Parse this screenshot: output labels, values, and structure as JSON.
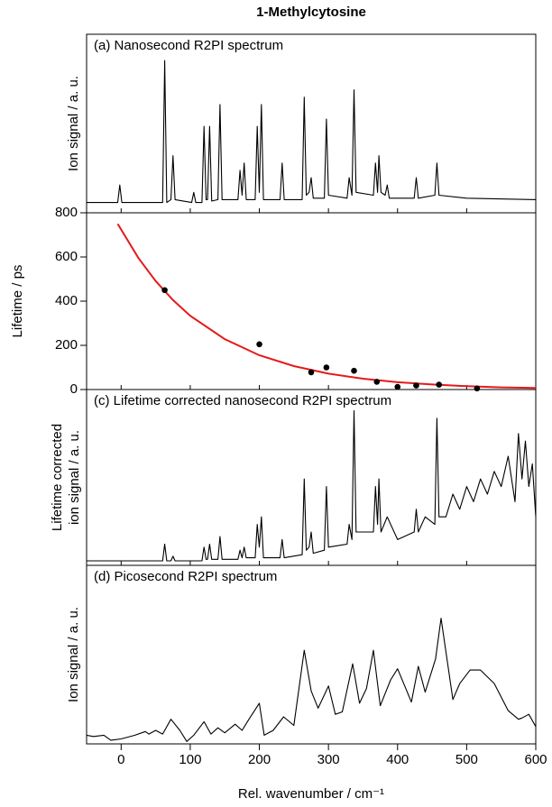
{
  "chart_data": [
    {
      "type": "line",
      "title": "1-Methylcytosine",
      "label": "(a) Nanosecond R2PI spectrum",
      "ylabel": "Ion signal / a. u.",
      "color": "#000000",
      "xlim": [
        -50,
        600
      ],
      "ylim": [
        -0.04,
        1.18
      ],
      "x": [
        -50,
        -5,
        -2,
        1,
        60,
        63,
        66,
        72,
        75,
        78,
        102,
        105,
        108,
        117,
        120,
        123,
        125,
        128,
        131,
        140,
        143,
        146,
        169,
        172,
        175,
        178,
        181,
        194,
        197,
        200,
        203,
        206,
        230,
        233,
        236,
        262,
        265,
        268,
        272,
        275,
        278,
        294,
        297,
        300,
        327,
        330,
        334,
        337,
        340,
        365,
        368,
        371,
        373,
        376,
        382,
        385,
        388,
        424,
        427,
        430,
        454,
        457,
        460,
        500,
        600
      ],
      "values": [
        0.03,
        0.03,
        0.15,
        0.03,
        0.03,
        1.0,
        0.03,
        0.05,
        0.35,
        0.05,
        0.03,
        0.1,
        0.03,
        0.03,
        0.55,
        0.05,
        0.05,
        0.55,
        0.04,
        0.05,
        0.7,
        0.05,
        0.05,
        0.25,
        0.08,
        0.3,
        0.05,
        0.05,
        0.55,
        0.1,
        0.7,
        0.05,
        0.05,
        0.3,
        0.05,
        0.05,
        0.75,
        0.08,
        0.1,
        0.2,
        0.06,
        0.06,
        0.6,
        0.08,
        0.06,
        0.2,
        0.08,
        0.8,
        0.1,
        0.08,
        0.3,
        0.1,
        0.35,
        0.1,
        0.08,
        0.15,
        0.06,
        0.06,
        0.2,
        0.06,
        0.08,
        0.3,
        0.08,
        0.06,
        0.05
      ]
    },
    {
      "type": "scatter",
      "ylabel": "Lifetime / ps",
      "xlim": [
        -50,
        600
      ],
      "ylim": [
        0,
        800
      ],
      "yticks": [
        0,
        200,
        400,
        600,
        800
      ],
      "points": {
        "color": "#000000",
        "x": [
          63,
          200,
          275,
          297,
          337,
          370,
          400,
          427,
          460,
          515
        ],
        "values": [
          450,
          205,
          78,
          100,
          85,
          35,
          12,
          18,
          22,
          5
        ]
      },
      "fit": {
        "color": "#e41a1c",
        "x": [
          -5,
          25,
          50,
          75,
          100,
          150,
          200,
          250,
          300,
          350,
          400,
          450,
          500,
          550,
          600
        ],
        "values": [
          750,
          595,
          491,
          405,
          334,
          228,
          155,
          106,
          72,
          49,
          33,
          23,
          15,
          10,
          7
        ]
      }
    },
    {
      "type": "line",
      "label": "(c) Lifetime corrected nanosecond R2PI spectrum",
      "ylabel": [
        "Lifetime corrected",
        "ion signal / a. u."
      ],
      "color": "#000000",
      "xlim": [
        -50,
        600
      ],
      "ylim": [
        -0.02,
        1.14
      ],
      "x": [
        -50,
        0,
        60,
        63,
        66,
        72,
        75,
        78,
        117,
        120,
        123,
        125,
        128,
        131,
        140,
        143,
        146,
        169,
        172,
        175,
        178,
        181,
        194,
        197,
        200,
        203,
        206,
        230,
        233,
        236,
        262,
        265,
        268,
        272,
        275,
        278,
        294,
        297,
        300,
        327,
        330,
        334,
        337,
        340,
        365,
        368,
        371,
        373,
        376,
        385,
        400,
        424,
        427,
        430,
        440,
        454,
        457,
        460,
        470,
        480,
        490,
        500,
        510,
        520,
        530,
        540,
        550,
        560,
        570,
        575,
        580,
        585,
        590,
        595,
        600
      ],
      "values": [
        0.01,
        0.01,
        0.01,
        0.12,
        0.01,
        0.01,
        0.04,
        0.01,
        0.01,
        0.1,
        0.02,
        0.02,
        0.12,
        0.02,
        0.02,
        0.17,
        0.02,
        0.02,
        0.08,
        0.03,
        0.1,
        0.03,
        0.03,
        0.25,
        0.1,
        0.3,
        0.03,
        0.03,
        0.15,
        0.03,
        0.05,
        0.55,
        0.08,
        0.1,
        0.2,
        0.06,
        0.08,
        0.5,
        0.1,
        0.12,
        0.25,
        0.15,
        1.0,
        0.2,
        0.2,
        0.5,
        0.25,
        0.55,
        0.2,
        0.3,
        0.15,
        0.2,
        0.35,
        0.2,
        0.3,
        0.25,
        0.95,
        0.3,
        0.3,
        0.45,
        0.35,
        0.5,
        0.4,
        0.55,
        0.45,
        0.6,
        0.5,
        0.7,
        0.4,
        0.85,
        0.55,
        0.8,
        0.5,
        0.65,
        0.3
      ]
    },
    {
      "type": "line",
      "label": "(d) Picosecond R2PI spectrum",
      "ylabel": "Ion signal / a. u.",
      "xlabel": "Rel. wavenumber / cm⁻¹",
      "color": "#000000",
      "xlim": [
        -50,
        600
      ],
      "ylim": [
        -0.02,
        1.43
      ],
      "xticks": [
        0,
        100,
        200,
        300,
        400,
        500,
        600
      ],
      "x": [
        -50,
        -40,
        -25,
        -15,
        0,
        20,
        35,
        40,
        50,
        60,
        72,
        85,
        95,
        105,
        120,
        130,
        140,
        150,
        165,
        175,
        185,
        200,
        207,
        220,
        235,
        250,
        265,
        275,
        285,
        300,
        310,
        320,
        335,
        345,
        355,
        365,
        375,
        390,
        400,
        420,
        430,
        440,
        455,
        463,
        480,
        490,
        505,
        520,
        540,
        560,
        575,
        580,
        590,
        600
      ],
      "values": [
        0.05,
        0.04,
        0.05,
        0.01,
        0.02,
        0.05,
        0.08,
        0.06,
        0.09,
        0.06,
        0.18,
        0.09,
        0,
        0.05,
        0.16,
        0.06,
        0.11,
        0.07,
        0.14,
        0.09,
        0.18,
        0.31,
        0.05,
        0.09,
        0.2,
        0.13,
        0.74,
        0.41,
        0.27,
        0.45,
        0.22,
        0.24,
        0.63,
        0.31,
        0.43,
        0.74,
        0.29,
        0.5,
        0.59,
        0.32,
        0.61,
        0.4,
        0.67,
        1.0,
        0.34,
        0.47,
        0.58,
        0.58,
        0.47,
        0.25,
        0.18,
        0.19,
        0.22,
        0.12
      ]
    }
  ]
}
